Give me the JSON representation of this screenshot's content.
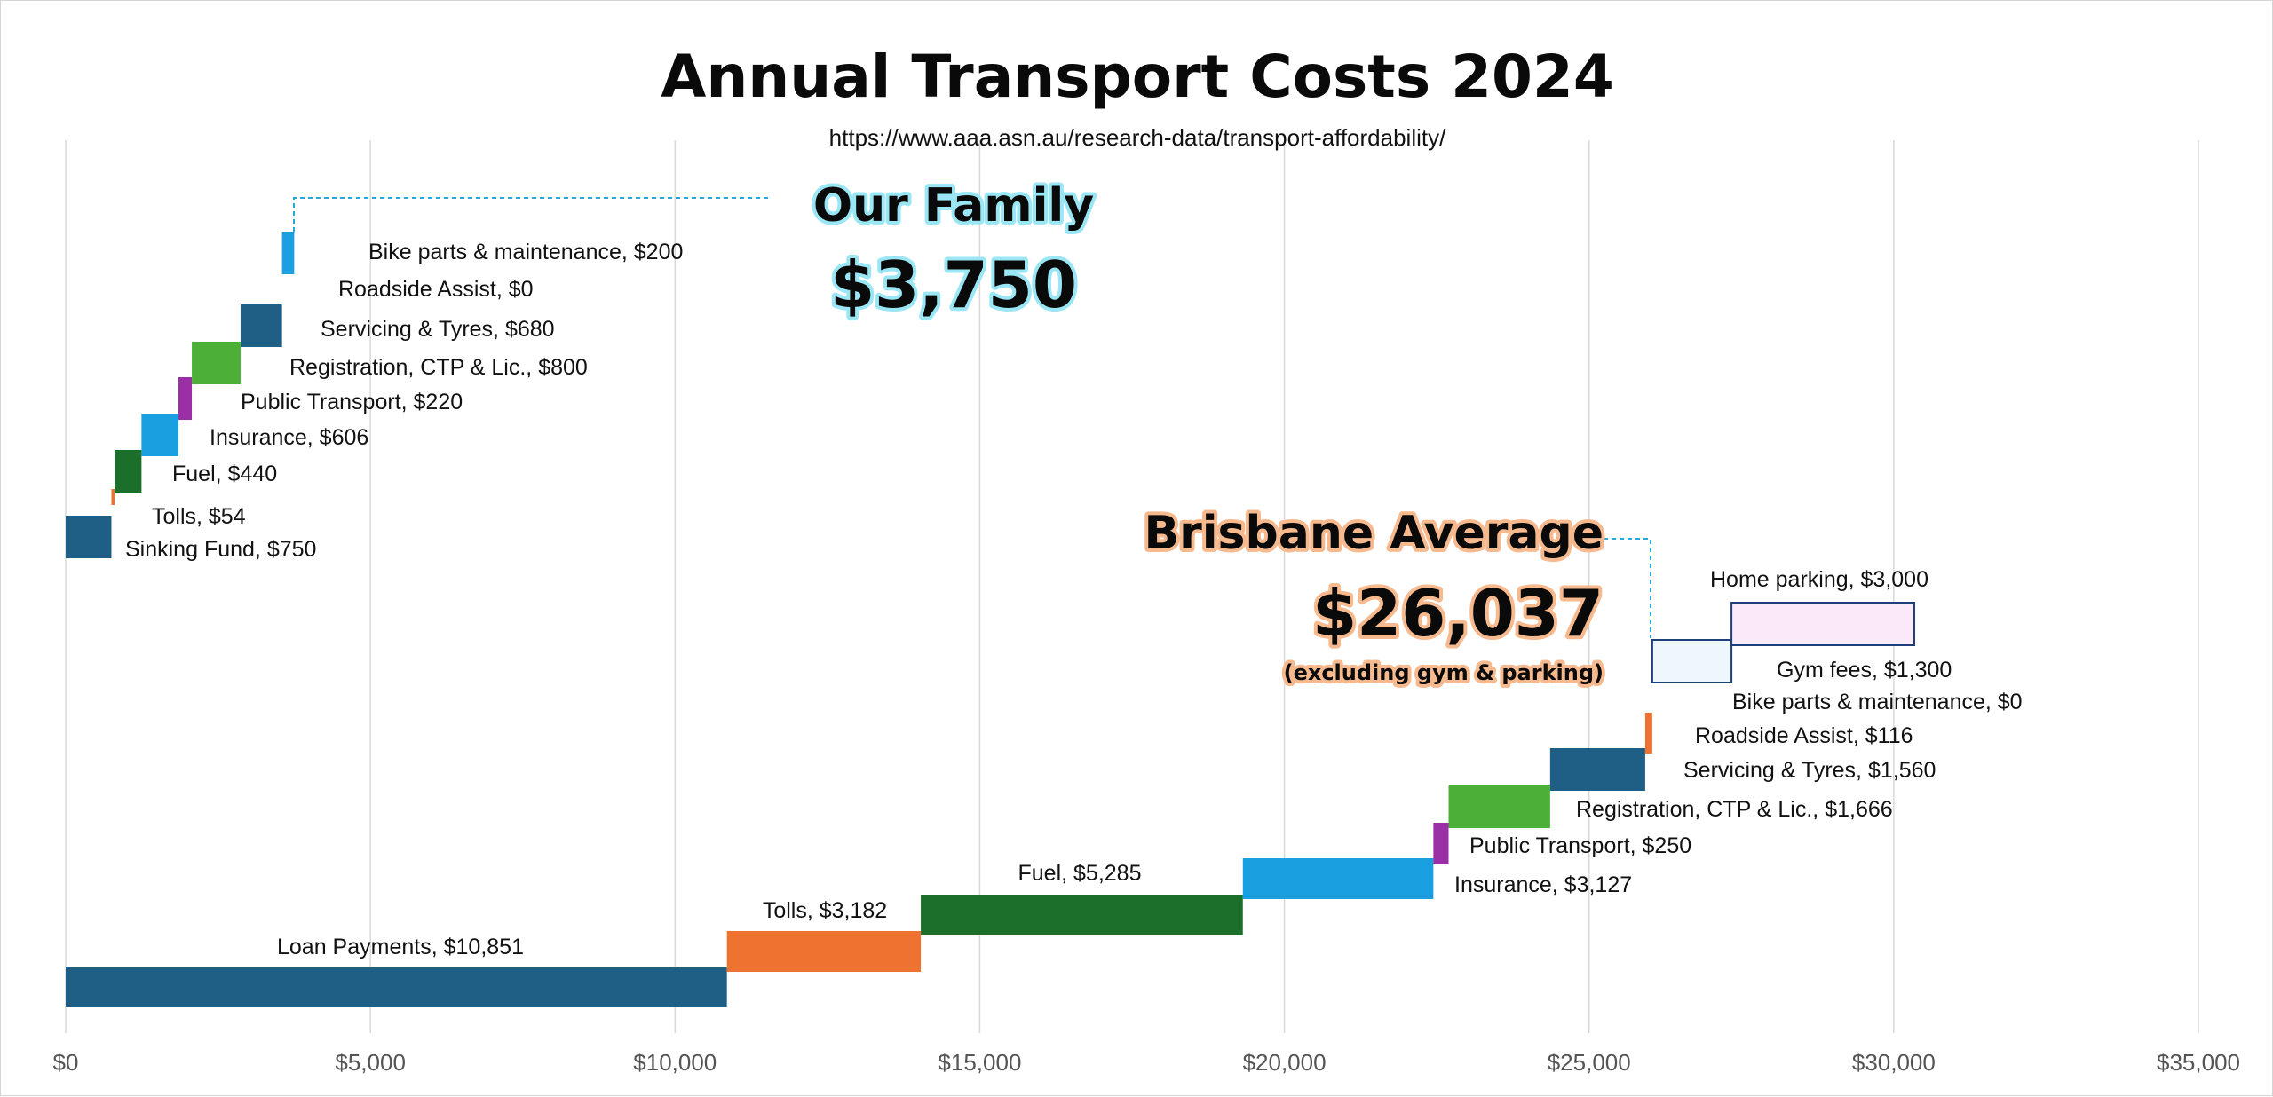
{
  "chart_data": {
    "type": "bar",
    "subtype": "waterfall",
    "title": "Annual Transport Costs 2024",
    "subtitle": "https://www.aaa.asn.au/research-data/transport-affordability/",
    "xlim": [
      0,
      35000
    ],
    "x_ticks": [
      0,
      5000,
      10000,
      15000,
      20000,
      25000,
      30000,
      35000
    ],
    "x_tick_labels": [
      "$0",
      "$5,000",
      "$10,000",
      "$15,000",
      "$20,000",
      "$25,000",
      "$30,000",
      "$35,000"
    ],
    "grid": true,
    "colors": {
      "Loan Payments": "#1f5f86",
      "Sinking Fund": "#1f5f86",
      "Tolls": "#ee7330",
      "Fuel": "#1b6f2a",
      "Insurance": "#1aa0e0",
      "Public Transport": "#9b30a6",
      "Registration, CTP & Lic.": "#4caf38",
      "Servicing & Tyres": "#1f5f86",
      "Roadside Assist": "#ee7330",
      "Bike parts & maintenance": "#1aa0e0",
      "Gym fees": "#eef8fc",
      "Home parking": "#fbe8f8",
      "outline": "#1f3f7a",
      "callout_glow_family": "#9be6f5",
      "callout_glow_brisbane": "#f7b98e",
      "leader": "#2aa7d8"
    },
    "groups": [
      {
        "name": "Our Family",
        "total_label": "$3,750",
        "items": [
          {
            "category": "Sinking Fund",
            "value": 750,
            "label": "Sinking Fund, $750"
          },
          {
            "category": "Tolls",
            "value": 54,
            "label": "Tolls, $54"
          },
          {
            "category": "Fuel",
            "value": 440,
            "label": "Fuel, $440"
          },
          {
            "category": "Insurance",
            "value": 606,
            "label": "Insurance, $606"
          },
          {
            "category": "Public Transport",
            "value": 220,
            "label": "Public Transport, $220"
          },
          {
            "category": "Registration, CTP & Lic.",
            "value": 800,
            "label": "Registration, CTP & Lic., $800"
          },
          {
            "category": "Servicing & Tyres",
            "value": 680,
            "label": "Servicing & Tyres, $680"
          },
          {
            "category": "Roadside Assist",
            "value": 0,
            "label": "Roadside Assist, $0"
          },
          {
            "category": "Bike parts & maintenance",
            "value": 200,
            "label": "Bike parts & maintenance, $200"
          }
        ]
      },
      {
        "name": "Brisbane Average",
        "total_label": "$26,037",
        "note": "(excluding gym & parking)",
        "items": [
          {
            "category": "Loan Payments",
            "value": 10851,
            "label": "Loan Payments, $10,851"
          },
          {
            "category": "Tolls",
            "value": 3182,
            "label": "Tolls, $3,182"
          },
          {
            "category": "Fuel",
            "value": 5285,
            "label": "Fuel, $5,285"
          },
          {
            "category": "Insurance",
            "value": 3127,
            "label": "Insurance, $3,127"
          },
          {
            "category": "Public Transport",
            "value": 250,
            "label": "Public Transport, $250"
          },
          {
            "category": "Registration, CTP & Lic.",
            "value": 1666,
            "label": "Registration, CTP & Lic., $1,666"
          },
          {
            "category": "Servicing & Tyres",
            "value": 1560,
            "label": "Servicing & Tyres, $1,560"
          },
          {
            "category": "Roadside Assist",
            "value": 116,
            "label": "Roadside Assist, $116"
          },
          {
            "category": "Bike parts & maintenance",
            "value": 0,
            "label": "Bike parts & maintenance, $0"
          },
          {
            "category": "Gym fees",
            "value": 1300,
            "label": "Gym fees, $1,300",
            "outlined": true
          },
          {
            "category": "Home parking",
            "value": 3000,
            "label": "Home parking, $3,000",
            "outlined": true
          }
        ]
      }
    ]
  }
}
